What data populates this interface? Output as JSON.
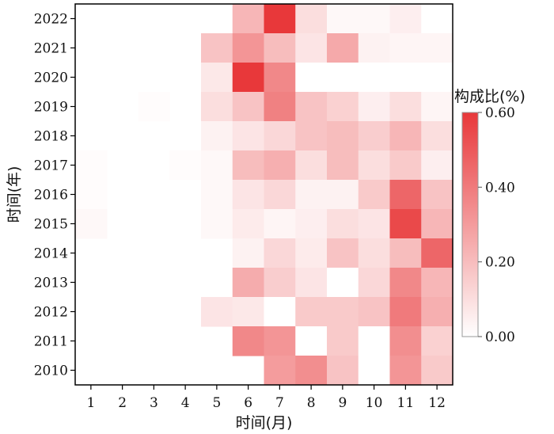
{
  "chart_data": {
    "type": "heatmap",
    "xlabel": "时间(月)",
    "ylabel": "时间(年)",
    "x_categories": [
      "1",
      "2",
      "3",
      "4",
      "5",
      "6",
      "7",
      "8",
      "9",
      "10",
      "11",
      "12"
    ],
    "y_categories": [
      "2022",
      "2021",
      "2020",
      "2019",
      "2018",
      "2017",
      "2016",
      "2015",
      "2014",
      "2013",
      "2012",
      "2011",
      "2010"
    ],
    "values": [
      [
        null,
        null,
        null,
        null,
        null,
        0.22,
        0.62,
        0.1,
        0.02,
        0.02,
        0.05,
        0.0
      ],
      [
        null,
        null,
        null,
        null,
        0.18,
        0.32,
        0.2,
        0.08,
        0.26,
        0.04,
        0.03,
        0.03
      ],
      [
        null,
        null,
        null,
        null,
        0.07,
        0.6,
        0.36,
        0.0,
        0.0,
        0.0,
        0.0,
        0.0
      ],
      [
        null,
        null,
        0.01,
        null,
        0.1,
        0.18,
        0.38,
        0.18,
        0.14,
        0.05,
        0.1,
        0.03
      ],
      [
        null,
        null,
        null,
        null,
        0.04,
        0.08,
        0.12,
        0.18,
        0.2,
        0.15,
        0.22,
        0.1
      ],
      [
        0.01,
        null,
        null,
        0.01,
        0.02,
        0.2,
        0.24,
        0.1,
        0.2,
        0.1,
        0.16,
        0.05
      ],
      [
        0.01,
        null,
        null,
        null,
        0.02,
        0.08,
        0.12,
        0.04,
        0.04,
        0.16,
        0.46,
        0.18
      ],
      [
        0.02,
        null,
        null,
        null,
        0.02,
        0.06,
        0.03,
        0.05,
        0.1,
        0.08,
        0.55,
        0.22
      ],
      [
        null,
        null,
        null,
        null,
        null,
        0.04,
        0.12,
        0.06,
        0.18,
        0.1,
        0.2,
        0.46
      ],
      [
        null,
        null,
        null,
        null,
        null,
        0.25,
        0.15,
        0.08,
        0.0,
        0.12,
        0.36,
        0.22
      ],
      [
        null,
        null,
        null,
        null,
        0.08,
        0.07,
        0.0,
        0.16,
        0.16,
        0.18,
        0.4,
        0.24
      ],
      [
        null,
        null,
        null,
        null,
        null,
        0.36,
        0.32,
        0.0,
        0.16,
        0.0,
        0.34,
        0.14
      ],
      [
        null,
        null,
        null,
        null,
        null,
        null,
        0.3,
        0.34,
        0.18,
        0.0,
        0.32,
        0.16
      ]
    ],
    "colorbar": {
      "title": "构成比(%)",
      "range": [
        0,
        0.6
      ],
      "ticks": [
        "0.00",
        "0.20",
        "0.40",
        "0.60"
      ],
      "colors": [
        "#ffffff",
        "#e8383a"
      ]
    }
  }
}
